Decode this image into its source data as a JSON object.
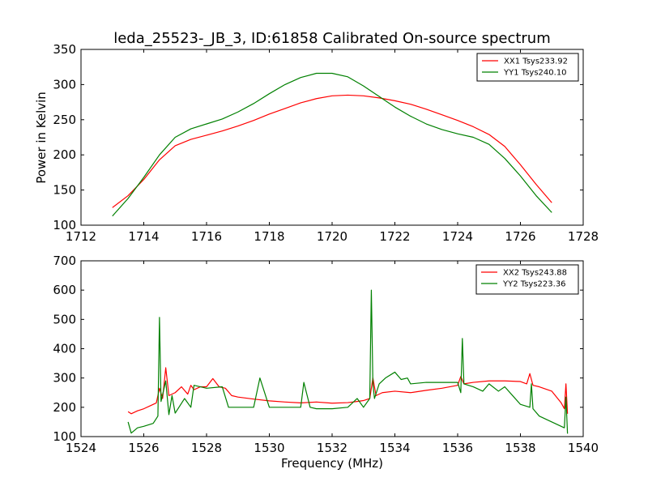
{
  "chart_data": [
    {
      "type": "line",
      "title": "leda_25523-_JB_3, ID:61858 Calibrated On-source spectrum",
      "xlabel": "",
      "ylabel": "Power in Kelvin",
      "xlim": [
        1712,
        1728
      ],
      "ylim": [
        100,
        350
      ],
      "xticks": [
        1712,
        1714,
        1716,
        1718,
        1720,
        1722,
        1724,
        1726,
        1728
      ],
      "yticks": [
        100,
        150,
        200,
        250,
        300,
        350
      ],
      "legend": "top-right",
      "grid": false,
      "series": [
        {
          "name": "XX1 Tsys233.92",
          "color": "#ff0000",
          "x": [
            1713.0,
            1713.5,
            1714.0,
            1714.5,
            1715.0,
            1715.5,
            1716.0,
            1716.5,
            1717.0,
            1717.5,
            1718.0,
            1718.5,
            1719.0,
            1719.5,
            1720.0,
            1720.5,
            1721.0,
            1721.5,
            1722.0,
            1722.5,
            1723.0,
            1723.5,
            1724.0,
            1724.5,
            1725.0,
            1725.5,
            1726.0,
            1726.5,
            1727.0
          ],
          "y": [
            125,
            142,
            165,
            193,
            213,
            222,
            228,
            234,
            241,
            249,
            258,
            266,
            274,
            280,
            284,
            285,
            284,
            281,
            277,
            272,
            265,
            257,
            249,
            240,
            229,
            212,
            186,
            158,
            132
          ]
        },
        {
          "name": "YY1 Tsys240.10",
          "color": "#008000",
          "x": [
            1713.0,
            1713.5,
            1714.0,
            1714.5,
            1715.0,
            1715.5,
            1716.0,
            1716.5,
            1717.0,
            1717.5,
            1718.0,
            1718.5,
            1719.0,
            1719.5,
            1720.0,
            1720.5,
            1721.0,
            1721.5,
            1722.0,
            1722.5,
            1723.0,
            1723.5,
            1724.0,
            1724.5,
            1725.0,
            1725.5,
            1726.0,
            1726.5,
            1727.0
          ],
          "y": [
            113,
            138,
            168,
            200,
            225,
            237,
            244,
            251,
            261,
            273,
            287,
            300,
            310,
            316,
            316,
            311,
            298,
            283,
            268,
            255,
            244,
            236,
            230,
            225,
            215,
            195,
            170,
            142,
            118
          ]
        }
      ]
    },
    {
      "type": "line",
      "title": "",
      "xlabel": "Frequency (MHz)",
      "ylabel": "",
      "xlim": [
        1524,
        1540
      ],
      "ylim": [
        100,
        700
      ],
      "xticks": [
        1524,
        1526,
        1528,
        1530,
        1532,
        1534,
        1536,
        1538,
        1540
      ],
      "yticks": [
        100,
        200,
        300,
        400,
        500,
        600,
        700
      ],
      "legend": "top-right",
      "grid": false,
      "series": [
        {
          "name": "XX2 Tsys243.88",
          "color": "#ff0000",
          "x": [
            1525.5,
            1525.6,
            1525.8,
            1526.0,
            1526.2,
            1526.4,
            1526.5,
            1526.6,
            1526.7,
            1526.8,
            1527.0,
            1527.2,
            1527.4,
            1527.5,
            1527.6,
            1527.8,
            1528.0,
            1528.2,
            1528.4,
            1528.6,
            1528.8,
            1529.0,
            1529.5,
            1530.0,
            1530.5,
            1531.0,
            1531.5,
            1532.0,
            1532.5,
            1532.8,
            1533.0,
            1533.2,
            1533.3,
            1533.4,
            1533.6,
            1534.0,
            1534.5,
            1535.0,
            1535.5,
            1536.0,
            1536.1,
            1536.2,
            1536.5,
            1537.0,
            1537.5,
            1538.0,
            1538.2,
            1538.3,
            1538.4,
            1538.6,
            1539.0,
            1539.3,
            1539.4,
            1539.45,
            1539.5
          ],
          "y": [
            185,
            178,
            188,
            195,
            205,
            215,
            265,
            230,
            335,
            240,
            250,
            270,
            245,
            275,
            260,
            270,
            270,
            298,
            270,
            265,
            240,
            235,
            228,
            222,
            218,
            215,
            218,
            214,
            216,
            220,
            223,
            230,
            300,
            240,
            250,
            255,
            250,
            258,
            265,
            275,
            305,
            280,
            285,
            290,
            290,
            288,
            280,
            315,
            275,
            270,
            255,
            215,
            195,
            280,
            178
          ]
        },
        {
          "name": "YY2 Tsys223.36",
          "color": "#008000",
          "x": [
            1525.5,
            1525.6,
            1525.8,
            1526.0,
            1526.3,
            1526.45,
            1526.5,
            1526.55,
            1526.7,
            1526.8,
            1526.9,
            1527.0,
            1527.3,
            1527.5,
            1527.6,
            1528.0,
            1528.5,
            1528.7,
            1529.0,
            1529.5,
            1529.7,
            1530.0,
            1530.5,
            1531.0,
            1531.1,
            1531.3,
            1531.5,
            1532.0,
            1532.5,
            1532.8,
            1533.0,
            1533.2,
            1533.25,
            1533.3,
            1533.35,
            1533.5,
            1533.7,
            1534.0,
            1534.2,
            1534.4,
            1534.5,
            1535.0,
            1535.5,
            1536.0,
            1536.1,
            1536.15,
            1536.2,
            1536.5,
            1536.8,
            1537.0,
            1537.3,
            1537.5,
            1538.0,
            1538.3,
            1538.35,
            1538.4,
            1538.6,
            1539.0,
            1539.4,
            1539.45,
            1539.5
          ],
          "y": [
            150,
            112,
            130,
            135,
            145,
            170,
            507,
            220,
            290,
            175,
            240,
            180,
            230,
            200,
            275,
            265,
            270,
            200,
            200,
            200,
            300,
            200,
            200,
            200,
            285,
            200,
            195,
            195,
            200,
            230,
            200,
            230,
            600,
            280,
            230,
            280,
            300,
            320,
            295,
            300,
            280,
            285,
            285,
            285,
            250,
            435,
            280,
            270,
            255,
            280,
            255,
            270,
            210,
            200,
            280,
            195,
            170,
            150,
            130,
            235,
            110
          ]
        }
      ]
    }
  ]
}
